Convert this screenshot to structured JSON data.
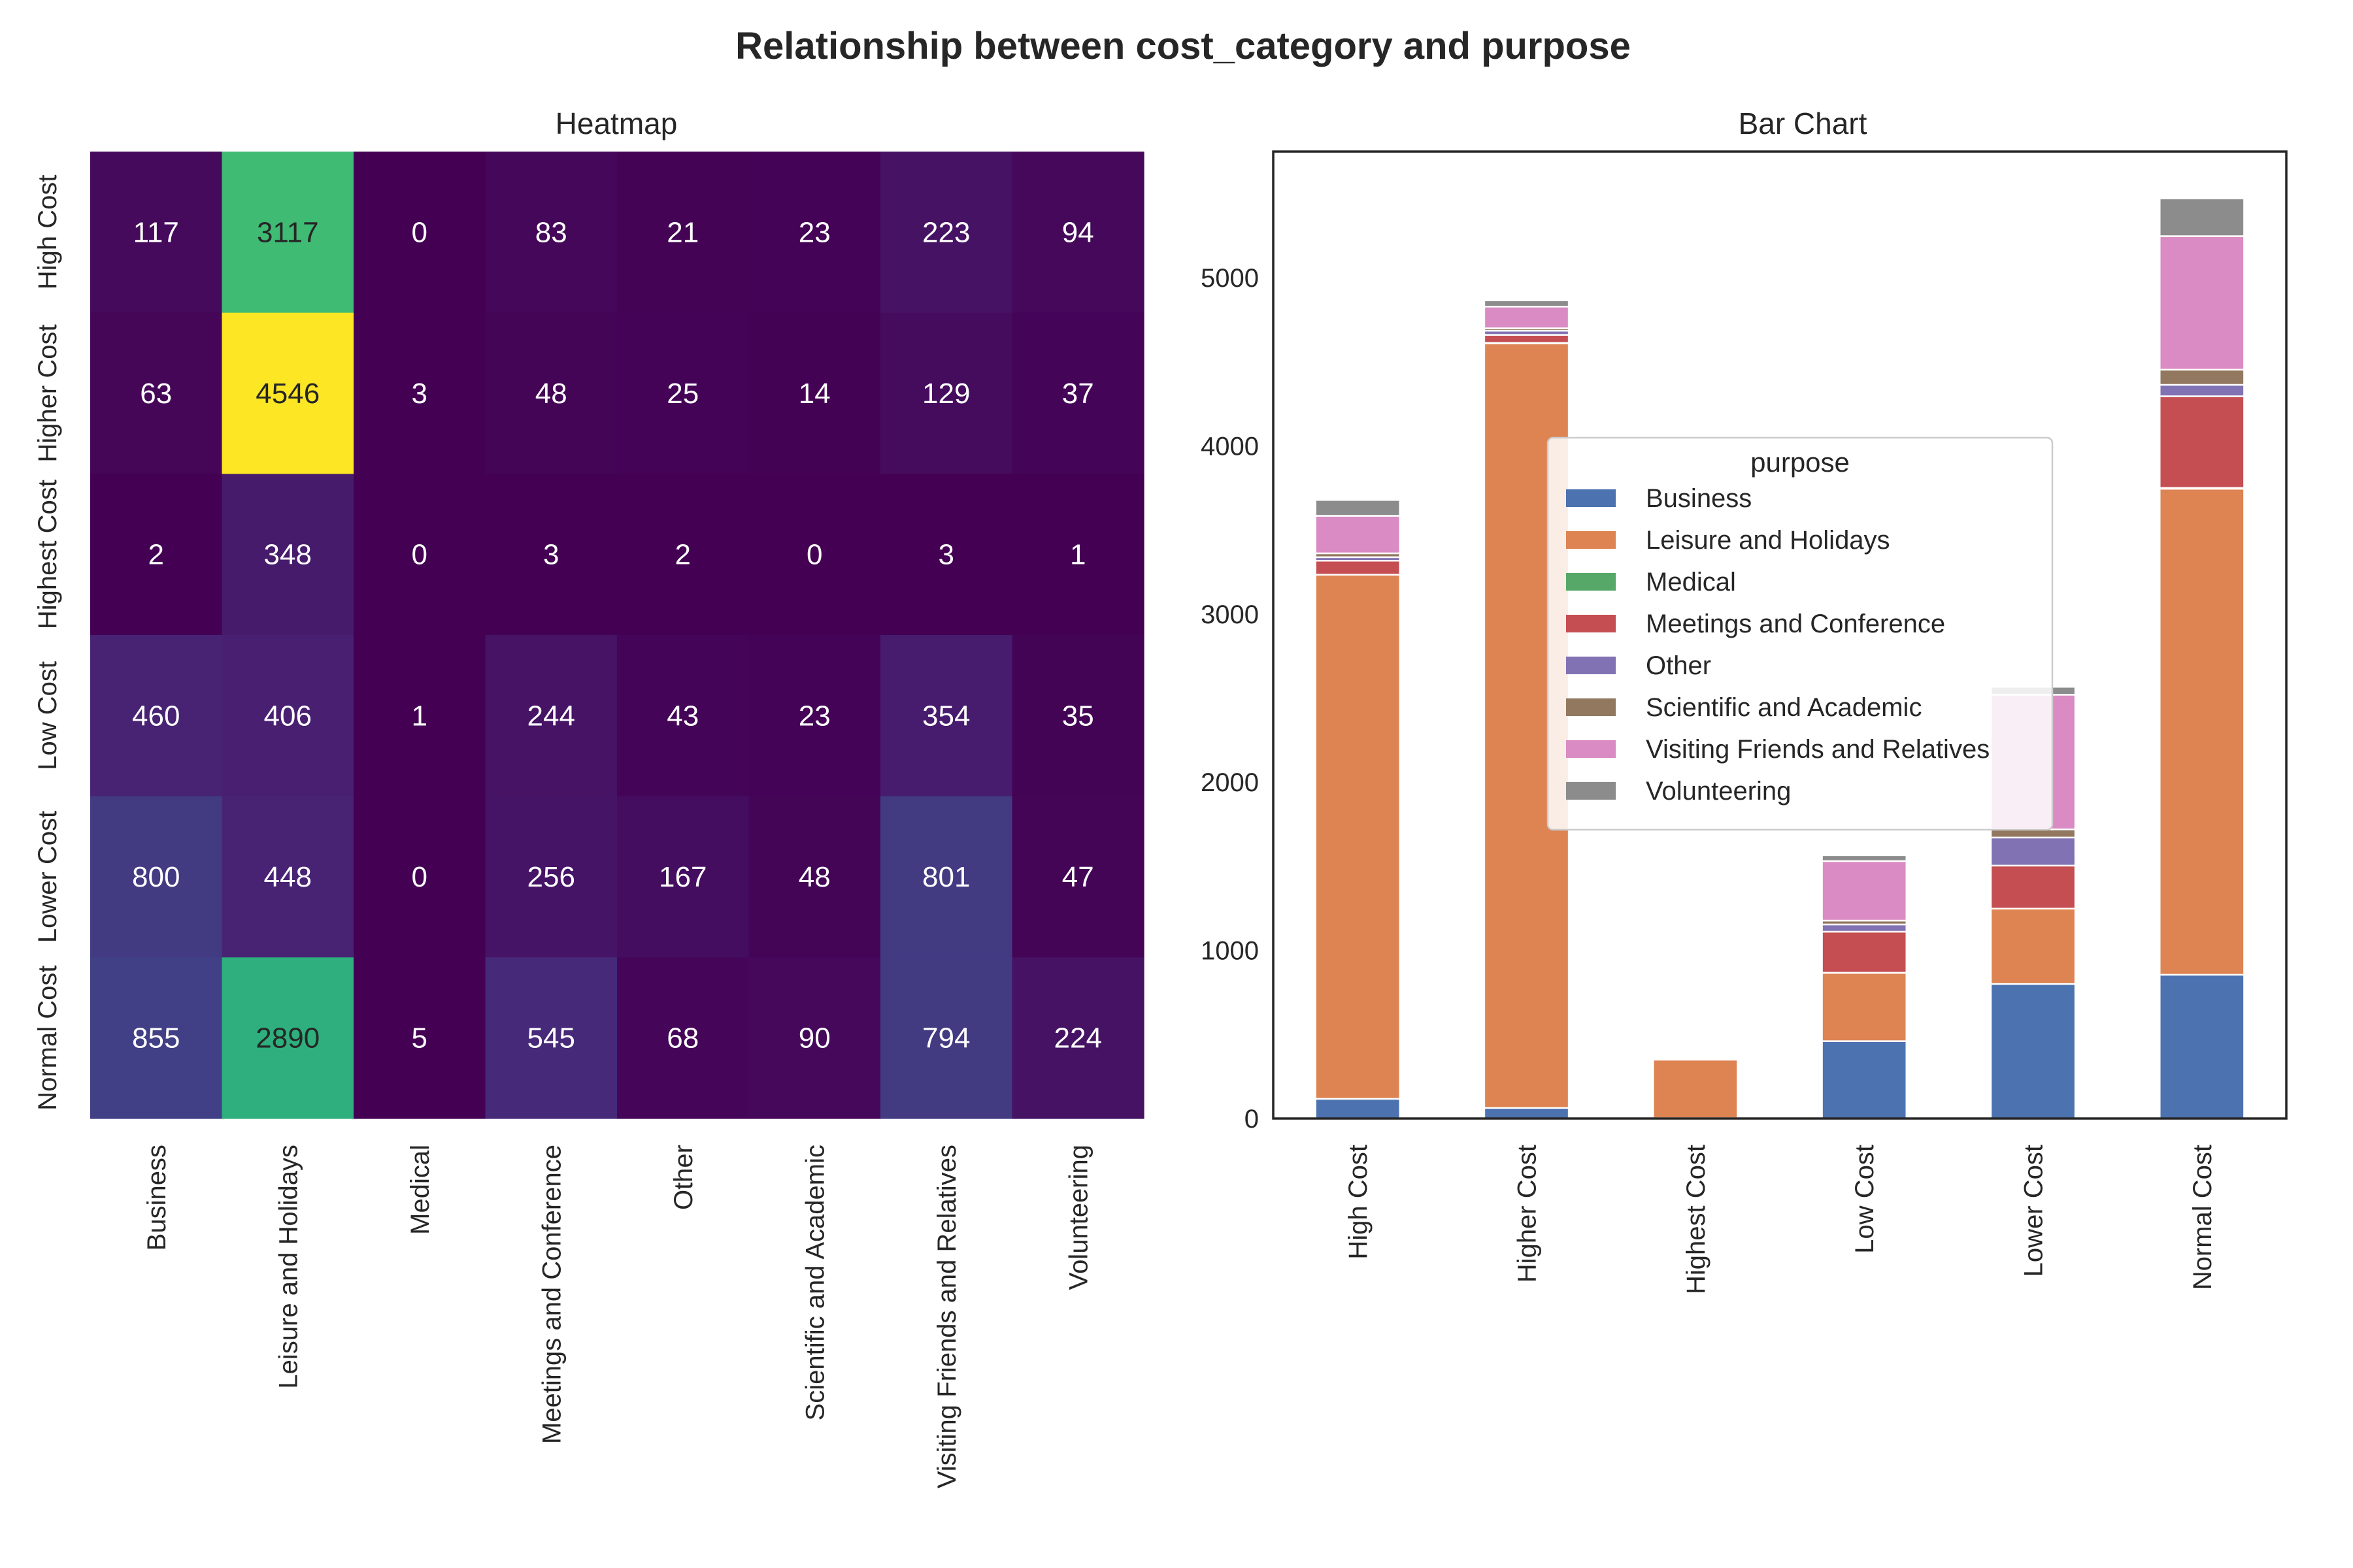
{
  "figure": {
    "title": "Relationship between cost_category and purpose"
  },
  "chart_data": [
    {
      "type": "heatmap",
      "title": "Heatmap",
      "xlabel": "",
      "ylabel": "",
      "rows": [
        "High Cost",
        "Higher Cost",
        "Highest Cost",
        "Low Cost",
        "Lower Cost",
        "Normal Cost"
      ],
      "columns": [
        "Business",
        "Leisure and Holidays",
        "Medical",
        "Meetings and Conference",
        "Other",
        "Scientific and Academic",
        "Visiting Friends and Relatives",
        "Volunteering"
      ],
      "values": [
        [
          117,
          3117,
          0,
          83,
          21,
          23,
          223,
          94
        ],
        [
          63,
          4546,
          3,
          48,
          25,
          14,
          129,
          37
        ],
        [
          2,
          348,
          0,
          3,
          2,
          0,
          3,
          1
        ],
        [
          460,
          406,
          1,
          244,
          43,
          23,
          354,
          35
        ],
        [
          800,
          448,
          0,
          256,
          167,
          48,
          801,
          47
        ],
        [
          855,
          2890,
          5,
          545,
          68,
          90,
          794,
          224
        ]
      ],
      "colormap": "viridis",
      "value_range": [
        0,
        4546
      ]
    },
    {
      "type": "bar",
      "stacked": true,
      "title": "Bar Chart",
      "xlabel": "",
      "ylabel": "",
      "categories": [
        "High Cost",
        "Higher Cost",
        "Highest Cost",
        "Low Cost",
        "Lower Cost",
        "Normal Cost"
      ],
      "ylim": [
        0,
        5750
      ],
      "yticks": [
        0,
        1000,
        2000,
        3000,
        4000,
        5000
      ],
      "legend_title": "purpose",
      "legend_position": "center",
      "series": [
        {
          "name": "Business",
          "color": "#4c72b0",
          "values": [
            117,
            63,
            2,
            460,
            800,
            855
          ]
        },
        {
          "name": "Leisure and Holidays",
          "color": "#dd8452",
          "values": [
            3117,
            4546,
            348,
            406,
            448,
            2890
          ]
        },
        {
          "name": "Medical",
          "color": "#55a868",
          "values": [
            0,
            3,
            0,
            1,
            0,
            5
          ]
        },
        {
          "name": "Meetings and Conference",
          "color": "#c44e52",
          "values": [
            83,
            48,
            3,
            244,
            256,
            545
          ]
        },
        {
          "name": "Other",
          "color": "#8172b3",
          "values": [
            21,
            25,
            2,
            43,
            167,
            68
          ]
        },
        {
          "name": "Scientific and Academic",
          "color": "#937860",
          "values": [
            23,
            14,
            0,
            23,
            48,
            90
          ]
        },
        {
          "name": "Visiting Friends and Relatives",
          "color": "#da8bc3",
          "values": [
            223,
            129,
            3,
            354,
            801,
            794
          ]
        },
        {
          "name": "Volunteering",
          "color": "#8c8c8c",
          "values": [
            94,
            37,
            1,
            35,
            47,
            224
          ]
        }
      ]
    }
  ]
}
